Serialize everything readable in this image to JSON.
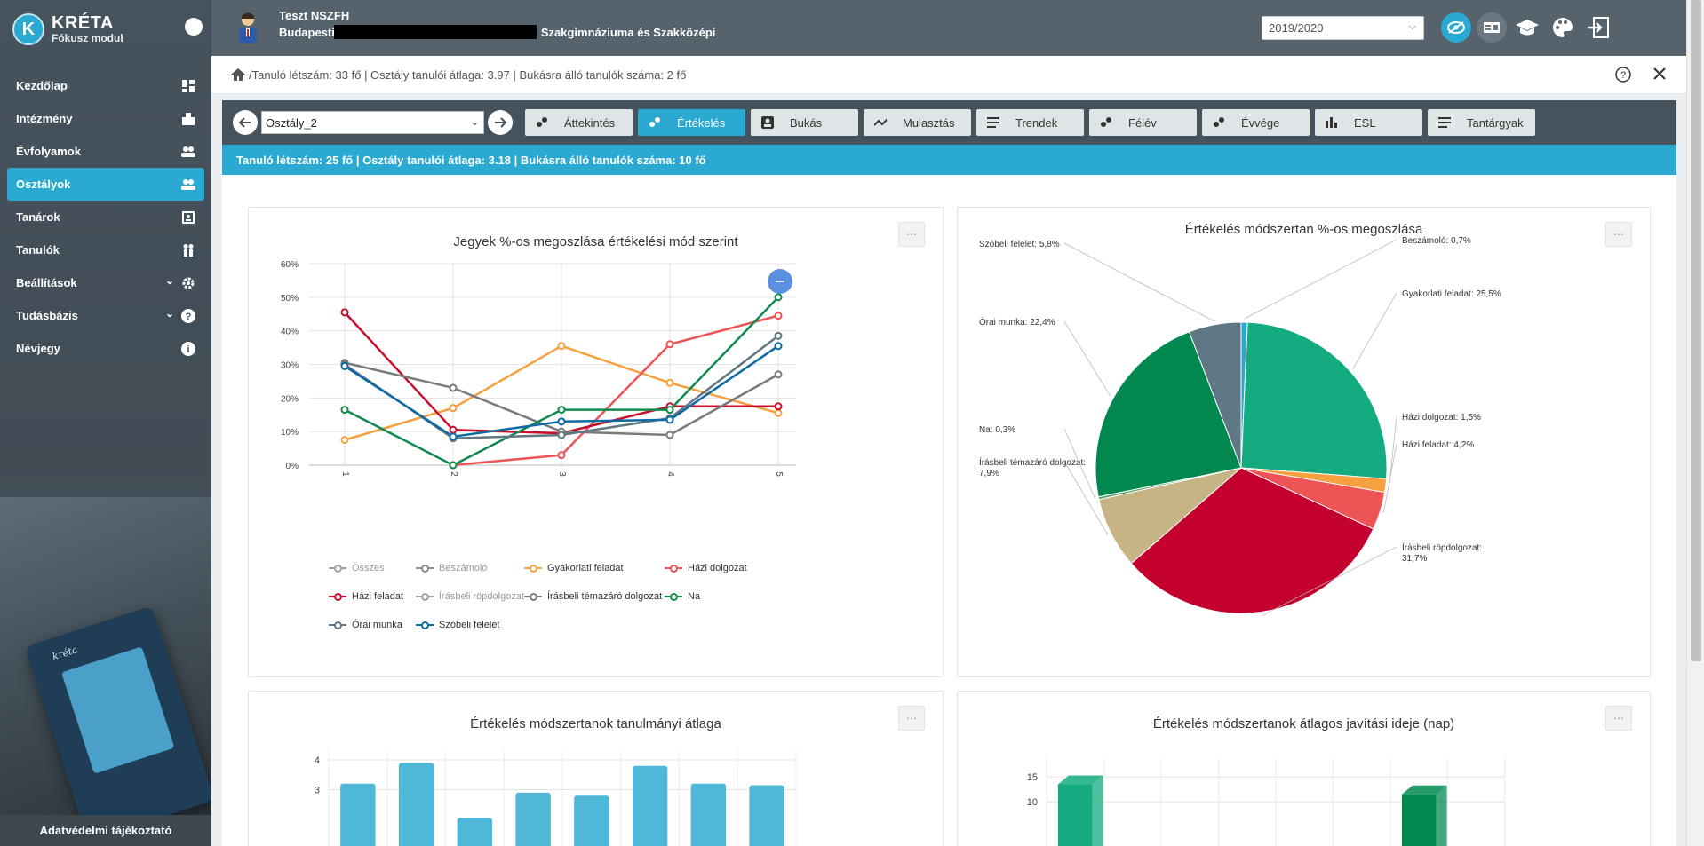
{
  "sidebar": {
    "logo_letter": "K",
    "app_name": "KRÉTA",
    "app_sub": "Fókusz modul",
    "items": [
      {
        "label": "Kezdőlap",
        "icon": "dashboard-icon"
      },
      {
        "label": "Intézmény",
        "icon": "building-icon"
      },
      {
        "label": "Évfolyamok",
        "icon": "group-icon"
      },
      {
        "label": "Osztályok",
        "icon": "group-icon",
        "active": true
      },
      {
        "label": "Tanárok",
        "icon": "teacher-icon"
      },
      {
        "label": "Tanulók",
        "icon": "students-icon"
      },
      {
        "label": "Beállítások",
        "icon": "gear-icon"
      },
      {
        "label": "Tudásbázis",
        "icon": "help-icon"
      },
      {
        "label": "Névjegy",
        "icon": "info-icon"
      }
    ],
    "footer": "Adatvédelmi tájékoztató",
    "photo_brand": "kréta"
  },
  "topbar": {
    "user": "Teszt NSZFH",
    "school_prefix": "Budapesti",
    "school_suffix": "Szakgimnáziuma és Szakközépi",
    "year": "2019/2020"
  },
  "breadcrumb": {
    "text": "/Tanuló létszám: 33 fő | Osztály tanulói átlaga: 3.97 | Bukásra álló tanulók száma: 2 fő"
  },
  "toolbar": {
    "class_value": "Osztály_2",
    "tabs": [
      "Áttekintés",
      "Értékelés",
      "Bukás",
      "Mulasztás",
      "Trendek",
      "Félév",
      "Évvége",
      "ESL",
      "Tantárgyak"
    ],
    "active_tab": 1
  },
  "infobar": "Tanuló létszám: 25 fő | Osztály tanulói átlaga: 3.18 | Bukásra álló tanulók száma: 10 fő",
  "colors": {
    "accent": "#2aa9d2",
    "sidebar": "#46525c",
    "toolbar": "#46525c"
  },
  "chart_data": [
    {
      "type": "line",
      "title": "Jegyek %-os megoszlása értékelési mód szerint",
      "x": [
        "1",
        "2",
        "3",
        "4",
        "5"
      ],
      "ylim": [
        0,
        60
      ],
      "yticks": [
        "0%",
        "10%",
        "20%",
        "30%",
        "40%",
        "50%",
        "60%"
      ],
      "grid": true,
      "legend_position": "bottom",
      "series": [
        {
          "name": "Összes",
          "color": "#a0a0a0",
          "values": [
            null,
            null,
            null,
            null,
            null
          ],
          "dimmed": true
        },
        {
          "name": "Beszámoló",
          "color": "#8c8c8c",
          "values": [
            null,
            null,
            null,
            null,
            null
          ],
          "dimmed": true
        },
        {
          "name": "Gyakorlati feladat",
          "color": "#f6a03f",
          "values": [
            7.5,
            17,
            35.5,
            24.5,
            15.5
          ]
        },
        {
          "name": "Házi dolgozat",
          "color": "#ec5456",
          "values": [
            null,
            0,
            3,
            36,
            44.5
          ]
        },
        {
          "name": "Házi feladat",
          "color": "#c8102e",
          "values": [
            45.5,
            10.5,
            9.5,
            17.5,
            17.5
          ]
        },
        {
          "name": "Írásbeli röpdolgozat",
          "color": "#a0a0a0",
          "values": [
            null,
            null,
            null,
            null,
            null
          ],
          "dimmed": true
        },
        {
          "name": "Írásbeli témazáró dolgozat",
          "color": "#7a7a7a",
          "values": [
            30.5,
            23,
            10,
            9,
            27
          ]
        },
        {
          "name": "Na",
          "color": "#118a4f",
          "values": [
            16.5,
            0,
            16.5,
            16.5,
            50
          ]
        },
        {
          "name": "Órai munka",
          "color": "#607784",
          "values": [
            30,
            8,
            9,
            14,
            38.5
          ]
        },
        {
          "name": "Szóbeli felelet",
          "color": "#0d6aa3",
          "values": [
            29.5,
            8.5,
            13,
            13.5,
            35.5
          ]
        }
      ]
    },
    {
      "type": "pie",
      "title": "Értékelés módszertan %-os megoszlása",
      "slices": [
        {
          "label": "Beszámoló: 0,7%",
          "value": 0.7,
          "color": "#2aa9d2"
        },
        {
          "label": "Gyakorlati feladat: 25,5%",
          "value": 25.5,
          "color": "#13ab7f"
        },
        {
          "label": "Házi dolgozat: 1,5%",
          "value": 1.5,
          "color": "#f6a03f"
        },
        {
          "label": "Házi feladat: 4,2%",
          "value": 4.2,
          "color": "#ec5456"
        },
        {
          "label": "Írásbeli röpdolgozat: 31,7%",
          "value": 31.7,
          "color": "#c4002f"
        },
        {
          "label": "Írásbeli témazáró dolgozat: 7,9%",
          "value": 7.9,
          "color": "#c6b484"
        },
        {
          "label": "Na: 0,3%",
          "value": 0.3,
          "color": "#5aa06e"
        },
        {
          "label": "Órai munka: 22,4%",
          "value": 22.4,
          "color": "#00884f"
        },
        {
          "label": "Szóbeli felelet: 5,8%",
          "value": 5.8,
          "color": "#5f7784"
        }
      ]
    },
    {
      "type": "bar",
      "title": "Értékelés módszertanok tanulmányi átlaga",
      "yticks": [
        "4",
        "3"
      ],
      "ylim": [
        2,
        4
      ],
      "values": [
        3.2,
        3.9,
        2.05,
        2.9,
        2.8,
        3.8,
        3.2,
        3.15
      ],
      "color": "#4fb7d8"
    },
    {
      "type": "bar",
      "title": "Értékelés módszertanok átlagos javítási ideje (nap)",
      "yticks": [
        "15",
        "10"
      ],
      "ylim": [
        5,
        17
      ],
      "values": [
        13.5,
        11.5
      ],
      "colors": [
        "#13ab7f",
        "#00884f"
      ]
    }
  ]
}
